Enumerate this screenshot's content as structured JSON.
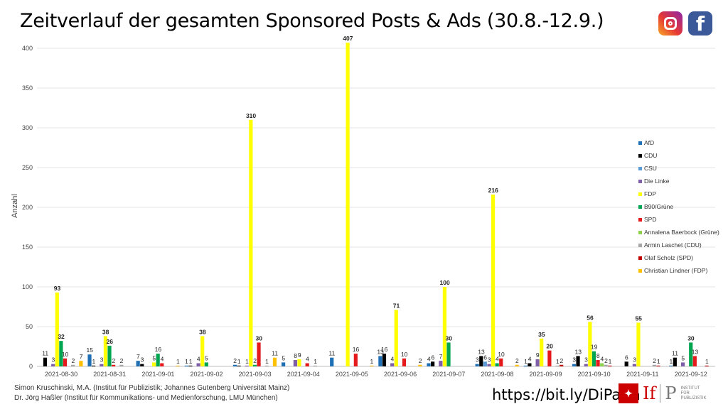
{
  "title": "Zeitverlauf der gesamten Sponsored Posts & Ads (30.8.-12.9.)",
  "logos": {
    "instagram": "instagram-icon",
    "facebook": "facebook-icon",
    "facebook_glyph": "f"
  },
  "footer": {
    "line1": "Simon Kruschinski, M.A. (Institut für Publizistik; Johannes Gutenberg Universität Mainz)",
    "line2": "Dr. Jörg Haßler (Institut für Kommunikations- und Medienforschung, LMU München)",
    "url": "https://bit.ly/DiPaCa",
    "ifp_if": "If",
    "ifp_p": "P",
    "ifp_text": "INSTITUT FÜR PUBLIZISTIK"
  },
  "chart_data": {
    "type": "bar",
    "ylabel": "Anzahl",
    "ylim": [
      0,
      400
    ],
    "yticks": [
      0,
      50,
      100,
      150,
      200,
      250,
      300,
      350,
      400
    ],
    "grid": true,
    "legend_position": "right",
    "categories": [
      "2021-08-30",
      "2021-08-31",
      "2021-09-01",
      "2021-09-02",
      "2021-09-03",
      "2021-09-04",
      "2021-09-05",
      "2021-09-06",
      "2021-09-07",
      "2021-09-08",
      "2021-09-09",
      "2021-09-10",
      "2021-09-11",
      "2021-09-12"
    ],
    "series": [
      {
        "name": "AfD",
        "color": "#1f6fb5",
        "values": [
          null,
          15,
          7,
          1,
          2,
          5,
          11,
          13,
          4,
          3,
          1,
          3,
          null,
          1
        ]
      },
      {
        "name": "CDU",
        "color": "#000000",
        "values": [
          11,
          1,
          3,
          1,
          1,
          null,
          null,
          16,
          6,
          13,
          4,
          13,
          6,
          11
        ]
      },
      {
        "name": "CSU",
        "color": "#5b9bd5",
        "values": [
          null,
          null,
          null,
          null,
          null,
          null,
          null,
          null,
          null,
          6,
          null,
          null,
          null,
          null
        ]
      },
      {
        "name": "Die Linke",
        "color": "#7f5fa8",
        "values": [
          3,
          3,
          null,
          4,
          1,
          8,
          null,
          4,
          7,
          3,
          9,
          3,
          3,
          5
        ]
      },
      {
        "name": "FDP",
        "color": "#ffff00",
        "values": [
          93,
          38,
          5,
          38,
          310,
          9,
          407,
          71,
          100,
          216,
          35,
          56,
          55,
          null
        ]
      },
      {
        "name": "B90/Grüne",
        "color": "#00a550",
        "values": [
          32,
          26,
          16,
          5,
          2,
          null,
          null,
          null,
          30,
          4,
          null,
          19,
          null,
          30
        ]
      },
      {
        "name": "SPD",
        "color": "#e41a1c",
        "values": [
          10,
          2,
          4,
          null,
          30,
          4,
          16,
          10,
          null,
          10,
          20,
          8,
          null,
          13
        ]
      },
      {
        "name": "Annalena Baerbock (Grüne)",
        "color": "#8fd14f",
        "values": [
          null,
          null,
          null,
          null,
          null,
          null,
          null,
          null,
          null,
          null,
          null,
          4,
          null,
          null
        ]
      },
      {
        "name": "Armin Laschet (CDU)",
        "color": "#a6a6a6",
        "values": [
          2,
          2,
          null,
          null,
          1,
          1,
          null,
          null,
          null,
          null,
          1,
          2,
          2,
          null
        ]
      },
      {
        "name": "Olaf Scholz (SPD)",
        "color": "#c00000",
        "values": [
          null,
          null,
          null,
          null,
          null,
          null,
          null,
          null,
          null,
          null,
          2,
          1,
          1,
          1
        ]
      },
      {
        "name": "Christian Lindner (FDP)",
        "color": "#ffc000",
        "values": [
          7,
          null,
          1,
          null,
          11,
          null,
          1,
          2,
          null,
          2,
          null,
          null,
          null,
          null
        ]
      }
    ]
  }
}
